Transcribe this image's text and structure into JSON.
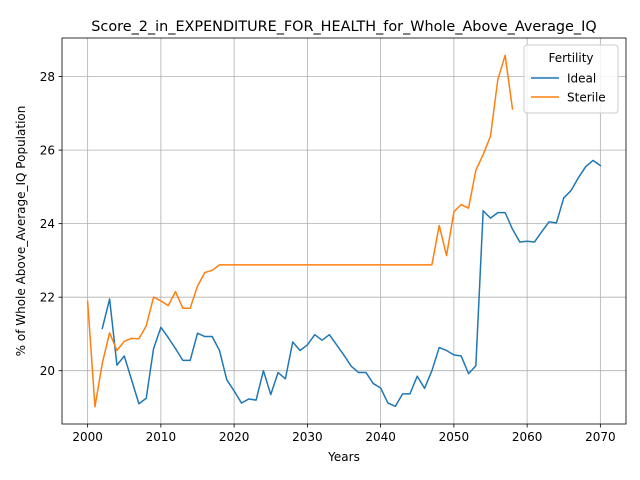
{
  "chart_data": {
    "type": "line",
    "title": "Score_2_in_EXPENDITURE_FOR_HEALTH_for_Whole_Above_Average_IQ",
    "xlabel": "Years",
    "ylabel": "% of Whole Above_Average_IQ Population",
    "xlim": [
      1996.5,
      2073.5
    ],
    "ylim": [
      18.55,
      29.05
    ],
    "xticks": [
      2000,
      2010,
      2020,
      2030,
      2040,
      2050,
      2060,
      2070
    ],
    "yticks": [
      20,
      22,
      24,
      26,
      28
    ],
    "grid": true,
    "legend": {
      "title": "Fertility",
      "position": "top-right"
    },
    "series": [
      {
        "name": "Ideal",
        "color": "#1f77b4",
        "x": [
          2002,
          2003,
          2004,
          2005,
          2006,
          2007,
          2008,
          2009,
          2010,
          2011,
          2012,
          2013,
          2014,
          2015,
          2016,
          2017,
          2018,
          2019,
          2020,
          2021,
          2022,
          2023,
          2024,
          2025,
          2026,
          2027,
          2028,
          2029,
          2030,
          2031,
          2032,
          2033,
          2034,
          2035,
          2036,
          2037,
          2038,
          2039,
          2040,
          2041,
          2042,
          2043,
          2044,
          2045,
          2046,
          2047,
          2048,
          2049,
          2050,
          2051,
          2052,
          2053,
          2054,
          2055,
          2056,
          2057,
          2058,
          2059,
          2060,
          2061,
          2062,
          2063,
          2064,
          2065,
          2066,
          2067,
          2068,
          2069,
          2070
        ],
        "y": [
          21.15,
          21.95,
          20.15,
          20.4,
          19.75,
          19.1,
          19.25,
          20.6,
          21.18,
          20.9,
          20.6,
          20.28,
          20.28,
          21.02,
          20.93,
          20.93,
          20.55,
          19.75,
          19.45,
          19.12,
          19.23,
          19.2,
          20.0,
          19.35,
          19.95,
          19.78,
          20.78,
          20.55,
          20.7,
          20.98,
          20.83,
          20.98,
          20.7,
          20.42,
          20.12,
          19.95,
          19.95,
          19.65,
          19.53,
          19.12,
          19.03,
          19.37,
          19.37,
          19.85,
          19.52,
          20.0,
          20.63,
          20.55,
          20.43,
          20.4,
          19.92,
          20.13,
          24.35,
          24.15,
          24.3,
          24.3,
          23.85,
          23.5,
          23.52,
          23.5,
          23.78,
          24.05,
          24.02,
          24.7,
          24.9,
          25.25,
          25.55,
          25.72,
          25.58
        ]
      },
      {
        "name": "Sterile",
        "color": "#ff7f0e",
        "x": [
          2000,
          2001,
          2002,
          2003,
          2004,
          2005,
          2006,
          2007,
          2008,
          2009,
          2010,
          2011,
          2012,
          2013,
          2014,
          2015,
          2016,
          2017,
          2018,
          2019,
          2020,
          2021,
          2022,
          2023,
          2024,
          2025,
          2026,
          2027,
          2028,
          2029,
          2030,
          2031,
          2032,
          2033,
          2034,
          2035,
          2036,
          2037,
          2038,
          2039,
          2040,
          2041,
          2042,
          2043,
          2044,
          2045,
          2046,
          2047,
          2048,
          2049,
          2050,
          2051,
          2052,
          2053,
          2054,
          2055,
          2056,
          2057,
          2058
        ],
        "y": [
          21.88,
          19.02,
          20.2,
          21.03,
          20.55,
          20.8,
          20.88,
          20.87,
          21.22,
          22.0,
          21.9,
          21.77,
          22.15,
          21.7,
          21.7,
          22.3,
          22.67,
          22.73,
          22.88,
          22.88,
          22.88,
          22.88,
          22.88,
          22.88,
          22.88,
          22.88,
          22.88,
          22.88,
          22.88,
          22.88,
          22.88,
          22.88,
          22.88,
          22.88,
          22.88,
          22.88,
          22.88,
          22.88,
          22.88,
          22.88,
          22.88,
          22.88,
          22.88,
          22.88,
          22.88,
          22.88,
          22.88,
          22.88,
          23.95,
          23.13,
          24.32,
          24.52,
          24.42,
          25.45,
          25.88,
          26.38,
          27.92,
          28.58,
          27.12
        ]
      }
    ]
  }
}
